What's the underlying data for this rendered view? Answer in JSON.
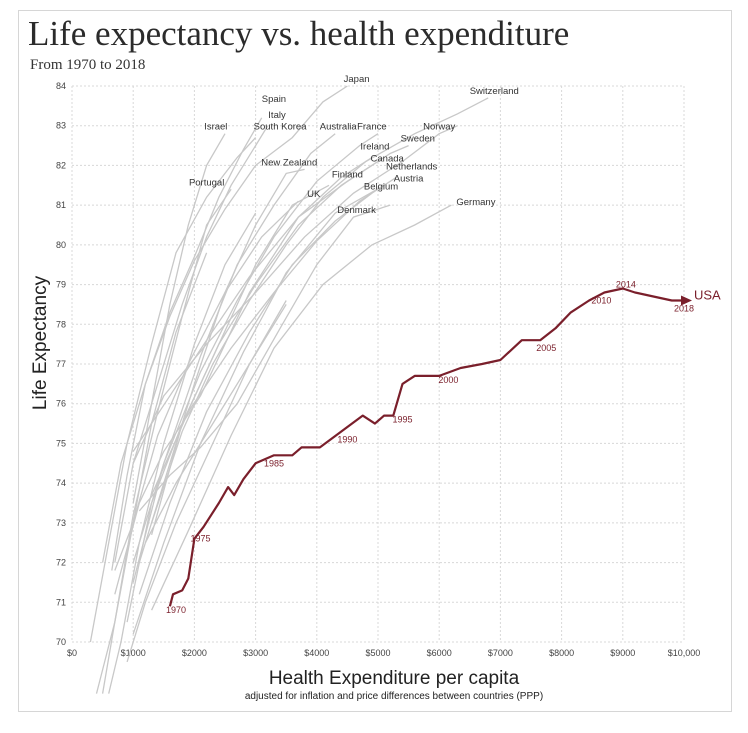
{
  "chart_data": {
    "type": "line",
    "title": "Life expectancy vs. health expenditure",
    "subtitle": "From 1970 to 2018",
    "xlabel": "Health Expenditure per capita",
    "xlabel_note": "adjusted for inflation and price differences between countries (PPP)",
    "ylabel": "Life Expectancy",
    "xlim": [
      0,
      10000
    ],
    "ylim": [
      70,
      84
    ],
    "x_ticks": [
      0,
      1000,
      2000,
      3000,
      4000,
      5000,
      6000,
      7000,
      8000,
      9000,
      10000
    ],
    "x_tick_labels": [
      "$0",
      "$1000",
      "$2000",
      "$3000",
      "$4000",
      "$5000",
      "$6000",
      "$7000",
      "$8000",
      "$9000",
      "$10,000"
    ],
    "y_ticks": [
      70,
      71,
      72,
      73,
      74,
      75,
      76,
      77,
      78,
      79,
      80,
      81,
      82,
      83,
      84
    ],
    "y_tick_labels": [
      "70",
      "71",
      "72",
      "73",
      "74",
      "75",
      "76",
      "77",
      "78",
      "79",
      "80",
      "81",
      "82",
      "83",
      "84"
    ],
    "grid": true,
    "highlight_color": "#7a1f2b",
    "other_color": "#c8c8c8",
    "usa": {
      "name": "USA",
      "points": [
        [
          1600,
          70.9
        ],
        [
          1650,
          71.2
        ],
        [
          1800,
          71.3
        ],
        [
          1900,
          71.6
        ],
        [
          2000,
          72.6
        ],
        [
          2150,
          72.9
        ],
        [
          2400,
          73.5
        ],
        [
          2550,
          73.9
        ],
        [
          2650,
          73.7
        ],
        [
          2800,
          74.1
        ],
        [
          3000,
          74.5
        ],
        [
          3300,
          74.7
        ],
        [
          3600,
          74.7
        ],
        [
          3750,
          74.9
        ],
        [
          4050,
          74.9
        ],
        [
          4400,
          75.3
        ],
        [
          4750,
          75.7
        ],
        [
          4950,
          75.5
        ],
        [
          5100,
          75.7
        ],
        [
          5250,
          75.7
        ],
        [
          5400,
          76.5
        ],
        [
          5600,
          76.7
        ],
        [
          6000,
          76.7
        ],
        [
          6350,
          76.9
        ],
        [
          6700,
          77.0
        ],
        [
          7000,
          77.1
        ],
        [
          7350,
          77.6
        ],
        [
          7650,
          77.6
        ],
        [
          7900,
          77.9
        ],
        [
          8150,
          78.3
        ],
        [
          8450,
          78.6
        ],
        [
          8700,
          78.8
        ],
        [
          9000,
          78.9
        ],
        [
          9200,
          78.8
        ],
        [
          9500,
          78.7
        ],
        [
          9800,
          78.6
        ],
        [
          10000,
          78.6
        ]
      ],
      "year_labels": [
        {
          "label": "1970",
          "x": 1700,
          "y": 70.8
        },
        {
          "label": "1975",
          "x": 2100,
          "y": 72.6
        },
        {
          "label": "1985",
          "x": 3300,
          "y": 74.5
        },
        {
          "label": "1990",
          "x": 4500,
          "y": 75.1
        },
        {
          "label": "1995",
          "x": 5400,
          "y": 75.6
        },
        {
          "label": "2000",
          "x": 6150,
          "y": 76.6
        },
        {
          "label": "2005",
          "x": 7750,
          "y": 77.4
        },
        {
          "label": "2010",
          "x": 8650,
          "y": 78.6
        },
        {
          "label": "2014",
          "x": 9050,
          "y": 79.0
        },
        {
          "label": "2018",
          "x": 10000,
          "y": 78.4
        }
      ]
    },
    "countries": [
      {
        "name": "Japan",
        "label_at": [
          4650,
          84.1
        ],
        "points": [
          [
            650,
            71.8
          ],
          [
            900,
            74.2
          ],
          [
            1200,
            76.5
          ],
          [
            1600,
            78.2
          ],
          [
            2000,
            79.6
          ],
          [
            2500,
            80.9
          ],
          [
            3000,
            82.0
          ],
          [
            3600,
            82.7
          ],
          [
            4100,
            83.6
          ],
          [
            4500,
            84.0
          ]
        ]
      },
      {
        "name": "Switzerland",
        "label_at": [
          6900,
          83.8
        ],
        "points": [
          [
            1300,
            73.0
          ],
          [
            1800,
            75.3
          ],
          [
            2300,
            77.0
          ],
          [
            2900,
            78.6
          ],
          [
            3500,
            80.0
          ],
          [
            4100,
            81.2
          ],
          [
            4800,
            82.1
          ],
          [
            5600,
            82.8
          ],
          [
            6300,
            83.3
          ],
          [
            6800,
            83.7
          ]
        ]
      },
      {
        "name": "Spain",
        "label_at": [
          3300,
          83.6
        ],
        "points": [
          [
            500,
            72.0
          ],
          [
            800,
            74.5
          ],
          [
            1200,
            76.5
          ],
          [
            1600,
            78.3
          ],
          [
            2000,
            79.7
          ],
          [
            2400,
            81.2
          ],
          [
            2800,
            82.4
          ],
          [
            3100,
            83.2
          ]
        ]
      },
      {
        "name": "Italy",
        "label_at": [
          3350,
          83.2
        ],
        "points": [
          [
            700,
            72.0
          ],
          [
            1000,
            74.5
          ],
          [
            1400,
            76.5
          ],
          [
            1800,
            78.5
          ],
          [
            2200,
            80.2
          ],
          [
            2600,
            81.5
          ],
          [
            3000,
            82.5
          ],
          [
            3200,
            83.0
          ]
        ]
      },
      {
        "name": "Israel",
        "label_at": [
          2350,
          82.9
        ],
        "points": [
          [
            1000,
            73.5
          ],
          [
            1300,
            76.0
          ],
          [
            1600,
            78.5
          ],
          [
            1900,
            80.5
          ],
          [
            2200,
            82.0
          ],
          [
            2500,
            82.8
          ]
        ]
      },
      {
        "name": "South Korea",
        "label_at": [
          3400,
          82.9
        ],
        "points": [
          [
            300,
            70.0
          ],
          [
            600,
            72.5
          ],
          [
            900,
            75.0
          ],
          [
            1300,
            77.5
          ],
          [
            1700,
            79.8
          ],
          [
            2200,
            81.2
          ],
          [
            2700,
            82.2
          ],
          [
            3000,
            82.7
          ]
        ]
      },
      {
        "name": "Australia",
        "label_at": [
          4350,
          82.9
        ],
        "points": [
          [
            1000,
            71.5
          ],
          [
            1500,
            74.5
          ],
          [
            2100,
            77.2
          ],
          [
            2700,
            79.5
          ],
          [
            3300,
            81.0
          ],
          [
            3900,
            82.3
          ],
          [
            4300,
            82.8
          ]
        ]
      },
      {
        "name": "France",
        "label_at": [
          4900,
          82.9
        ],
        "points": [
          [
            1000,
            72.0
          ],
          [
            1500,
            74.5
          ],
          [
            2100,
            76.8
          ],
          [
            2700,
            78.6
          ],
          [
            3300,
            80.2
          ],
          [
            4000,
            81.6
          ],
          [
            4700,
            82.5
          ],
          [
            5000,
            82.8
          ]
        ]
      },
      {
        "name": "Norway",
        "label_at": [
          6000,
          82.9
        ],
        "points": [
          [
            1000,
            74.5
          ],
          [
            1500,
            76.2
          ],
          [
            2200,
            77.5
          ],
          [
            3000,
            78.8
          ],
          [
            3800,
            80.2
          ],
          [
            4600,
            81.3
          ],
          [
            5400,
            82.1
          ],
          [
            6000,
            82.8
          ],
          [
            6300,
            83.0
          ]
        ]
      },
      {
        "name": "Sweden",
        "label_at": [
          5650,
          82.6
        ],
        "points": [
          [
            1000,
            74.8
          ],
          [
            1600,
            76.2
          ],
          [
            2200,
            77.6
          ],
          [
            2900,
            79.2
          ],
          [
            3700,
            80.7
          ],
          [
            4500,
            81.6
          ],
          [
            5200,
            82.3
          ],
          [
            5500,
            82.5
          ]
        ]
      },
      {
        "name": "Ireland",
        "label_at": [
          4950,
          82.4
        ],
        "points": [
          [
            700,
            71.2
          ],
          [
            1100,
            73.5
          ],
          [
            1500,
            74.8
          ],
          [
            2100,
            76.2
          ],
          [
            2900,
            78.8
          ],
          [
            3700,
            80.7
          ],
          [
            4400,
            81.7
          ],
          [
            4900,
            82.2
          ]
        ]
      },
      {
        "name": "New Zealand",
        "label_at": [
          3550,
          82.0
        ],
        "points": [
          [
            1100,
            72.0
          ],
          [
            1500,
            74.0
          ],
          [
            2000,
            76.5
          ],
          [
            2500,
            78.8
          ],
          [
            3000,
            80.5
          ],
          [
            3500,
            81.8
          ],
          [
            3800,
            81.9
          ]
        ]
      },
      {
        "name": "Canada",
        "label_at": [
          5150,
          82.1
        ],
        "points": [
          [
            1300,
            72.7
          ],
          [
            1800,
            75.5
          ],
          [
            2400,
            77.5
          ],
          [
            3000,
            79.0
          ],
          [
            3700,
            80.5
          ],
          [
            4400,
            81.5
          ],
          [
            4900,
            82.0
          ]
        ]
      },
      {
        "name": "Netherlands",
        "label_at": [
          5550,
          81.9
        ],
        "points": [
          [
            1300,
            73.7
          ],
          [
            1900,
            75.8
          ],
          [
            2600,
            77.4
          ],
          [
            3300,
            78.8
          ],
          [
            4000,
            80.1
          ],
          [
            4700,
            81.1
          ],
          [
            5300,
            81.7
          ]
        ]
      },
      {
        "name": "Finland",
        "label_at": [
          4500,
          81.7
        ],
        "points": [
          [
            900,
            70.5
          ],
          [
            1300,
            73.5
          ],
          [
            1800,
            75.5
          ],
          [
            2400,
            77.5
          ],
          [
            3000,
            79.5
          ],
          [
            3600,
            81.0
          ],
          [
            4200,
            81.5
          ]
        ]
      },
      {
        "name": "Austria",
        "label_at": [
          5500,
          81.6
        ],
        "points": [
          [
            1000,
            70.2
          ],
          [
            1500,
            72.5
          ],
          [
            2100,
            75.0
          ],
          [
            2800,
            77.3
          ],
          [
            3500,
            79.3
          ],
          [
            4300,
            80.8
          ],
          [
            5100,
            81.5
          ]
        ]
      },
      {
        "name": "Portugal",
        "label_at": [
          2200,
          81.5
        ],
        "points": [
          [
            400,
            67.5
          ],
          [
            700,
            70.5
          ],
          [
            1000,
            73.2
          ],
          [
            1400,
            75.8
          ],
          [
            1800,
            78.2
          ],
          [
            2200,
            80.5
          ],
          [
            2600,
            81.4
          ]
        ]
      },
      {
        "name": "Belgium",
        "label_at": [
          5050,
          81.4
        ],
        "points": [
          [
            1100,
            71.2
          ],
          [
            1600,
            73.5
          ],
          [
            2200,
            75.8
          ],
          [
            2900,
            77.8
          ],
          [
            3600,
            79.5
          ],
          [
            4300,
            80.6
          ],
          [
            4900,
            81.3
          ]
        ]
      },
      {
        "name": "UK",
        "label_at": [
          3950,
          81.2
        ],
        "points": [
          [
            700,
            71.8
          ],
          [
            1000,
            73.0
          ],
          [
            1400,
            75.2
          ],
          [
            1900,
            77.0
          ],
          [
            2500,
            78.8
          ],
          [
            3100,
            80.2
          ],
          [
            3700,
            81.1
          ]
        ]
      },
      {
        "name": "Germany",
        "label_at": [
          6600,
          81.0
        ],
        "points": [
          [
            1300,
            70.8
          ],
          [
            1900,
            72.8
          ],
          [
            2600,
            75.2
          ],
          [
            3300,
            77.4
          ],
          [
            4100,
            79.0
          ],
          [
            4900,
            80.0
          ],
          [
            5600,
            80.5
          ],
          [
            6200,
            81.0
          ]
        ]
      },
      {
        "name": "Denmark",
        "label_at": [
          4650,
          80.8
        ],
        "points": [
          [
            1100,
            73.3
          ],
          [
            1600,
            74.2
          ],
          [
            2100,
            74.9
          ],
          [
            2700,
            76.0
          ],
          [
            3400,
            77.9
          ],
          [
            4000,
            79.5
          ],
          [
            4600,
            80.7
          ],
          [
            5200,
            81.0
          ]
        ]
      },
      {
        "name": "",
        "label_at": null,
        "points": [
          [
            600,
            67.0
          ],
          [
            800,
            70.0
          ],
          [
            1100,
            72.5
          ],
          [
            1500,
            75.0
          ],
          [
            2000,
            77.5
          ],
          [
            2500,
            79.5
          ],
          [
            3000,
            80.8
          ]
        ]
      },
      {
        "name": "",
        "label_at": null,
        "points": [
          [
            500,
            68.0
          ],
          [
            700,
            70.5
          ],
          [
            1000,
            73.0
          ],
          [
            1300,
            75.5
          ],
          [
            1700,
            77.8
          ],
          [
            2200,
            79.8
          ]
        ]
      },
      {
        "name": "",
        "label_at": null,
        "points": [
          [
            900,
            69.5
          ],
          [
            1200,
            71.0
          ],
          [
            1700,
            73.0
          ],
          [
            2300,
            75.0
          ],
          [
            2900,
            77.0
          ],
          [
            3500,
            78.6
          ]
        ]
      },
      {
        "name": "",
        "label_at": null,
        "points": [
          [
            1200,
            72.5
          ],
          [
            1700,
            74.0
          ],
          [
            2300,
            75.5
          ],
          [
            2900,
            77.0
          ],
          [
            3500,
            78.5
          ]
        ]
      }
    ]
  }
}
